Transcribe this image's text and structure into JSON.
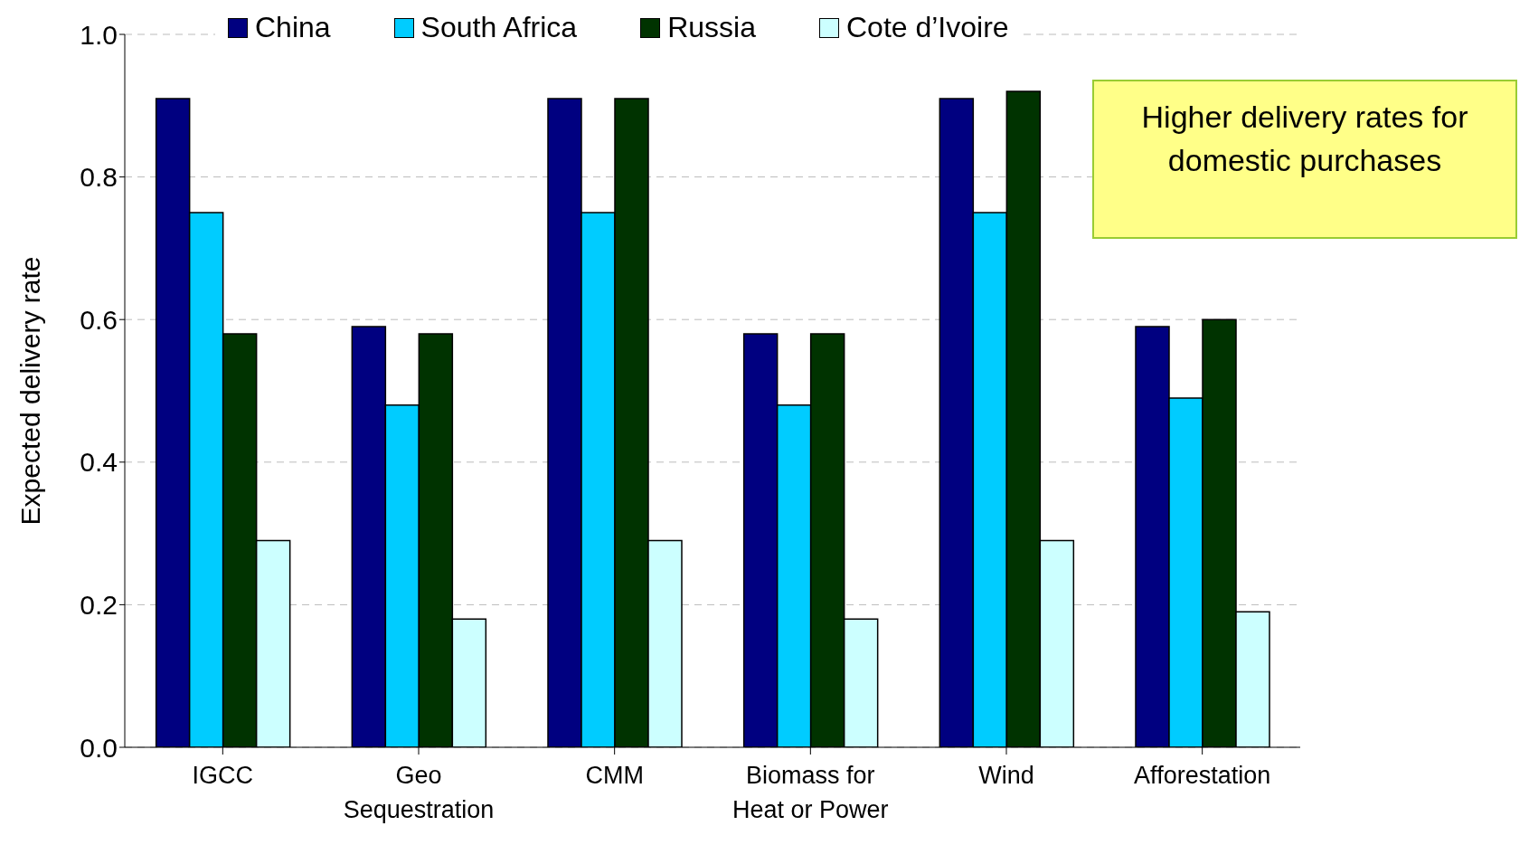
{
  "chart_data": {
    "type": "bar",
    "ylabel": "Expected delivery rate",
    "categories": [
      "IGCC",
      "Geo Sequestration",
      "CMM",
      "Biomass for Heat or Power",
      "Wind",
      "Afforestation"
    ],
    "series": [
      {
        "name": "China",
        "color": "#000080",
        "values": [
          0.91,
          0.59,
          0.91,
          0.58,
          0.91,
          0.59
        ]
      },
      {
        "name": "South Africa",
        "color": "#00ccff",
        "values": [
          0.75,
          0.48,
          0.75,
          0.48,
          0.75,
          0.49
        ]
      },
      {
        "name": "Russia",
        "color": "#003300",
        "values": [
          0.58,
          0.58,
          0.91,
          0.58,
          0.92,
          0.6
        ]
      },
      {
        "name": "Cote d’Ivoire",
        "color": "#ccffff",
        "values": [
          0.29,
          0.18,
          0.29,
          0.18,
          0.29,
          0.19
        ]
      }
    ],
    "ylim": [
      0,
      1
    ],
    "yticks": [
      {
        "value": 0,
        "label": "0.0"
      },
      {
        "value": 0.2,
        "label": "0.2"
      },
      {
        "value": 0.4,
        "label": "0.4"
      },
      {
        "value": 0.6,
        "label": "0.6"
      },
      {
        "value": 0.8,
        "label": "0.8"
      },
      {
        "value": 1,
        "label": "1.0"
      }
    ],
    "grid": "y",
    "legend": "top",
    "annotations": [
      "Higher delivery rates for domestic purchases"
    ]
  }
}
